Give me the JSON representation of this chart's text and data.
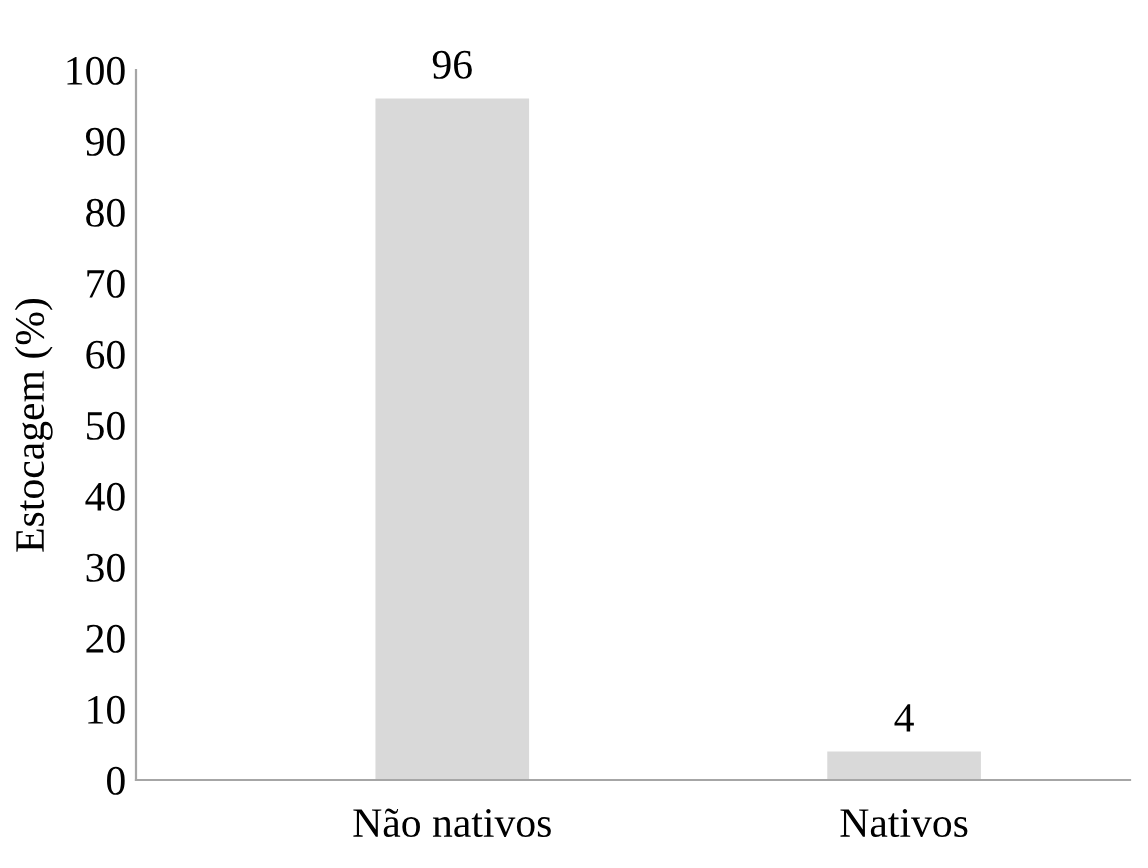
{
  "chart_data": {
    "type": "bar",
    "ylabel": "Estocagem (%)",
    "categories": [
      "Não nativos",
      "Nativos"
    ],
    "values": [
      96,
      4
    ],
    "color": "#d9d9d9",
    "ylim": [
      0,
      100
    ],
    "yticks": [
      0,
      10,
      20,
      30,
      40,
      50,
      60,
      70,
      80,
      90,
      100
    ],
    "data_labels": true,
    "grid": false,
    "legend": false
  }
}
